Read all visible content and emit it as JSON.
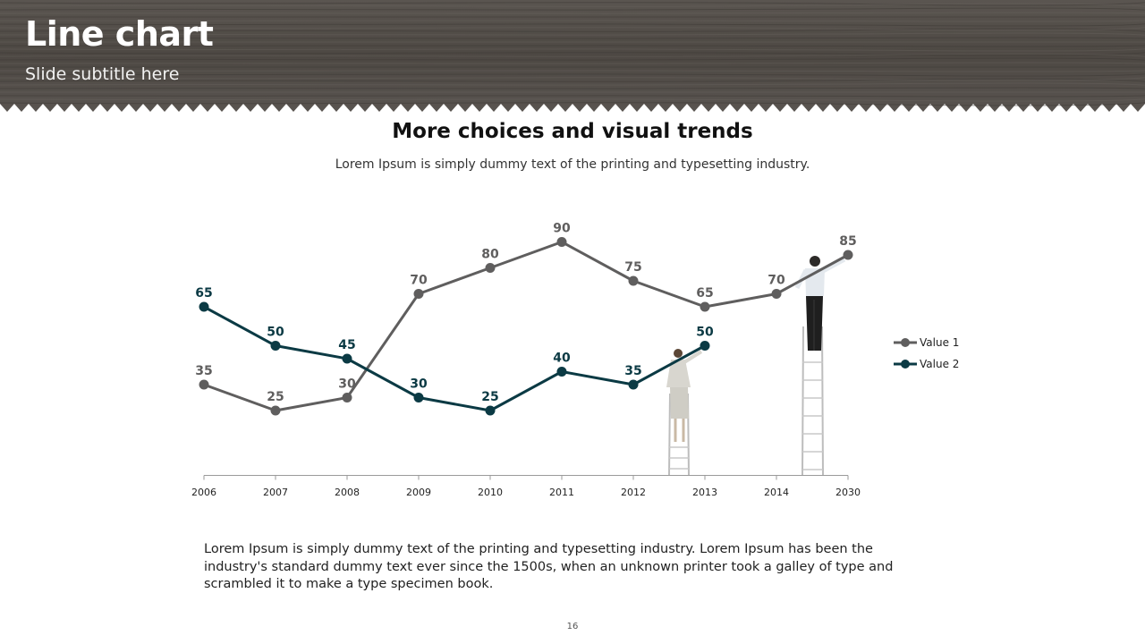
{
  "slide": {
    "title": "Line chart",
    "subtitle": "Slide subtitle here",
    "page_number": "16",
    "body_text": "Lorem Ipsum is simply dummy text of the printing and typesetting industry. Lorem Ipsum has been the industry's standard dummy text ever since the 1500s, when an unknown printer took a galley of type and scrambled it to make a type specimen book."
  },
  "colors": {
    "header_wood": "#55504b",
    "value1": "#5f5e5e",
    "value2": "#0b3a44",
    "axis": "#9a9a9a"
  },
  "chart_data": {
    "type": "line",
    "title": "More choices and visual trends",
    "subtitle": "Lorem Ipsum is simply dummy text of the printing and typesetting industry.",
    "categories": [
      "2006",
      "2007",
      "2008",
      "2009",
      "2010",
      "2011",
      "2012",
      "2013",
      "2014",
      "2030"
    ],
    "series": [
      {
        "name": "Value 1",
        "values": [
          35,
          25,
          30,
          70,
          80,
          90,
          75,
          65,
          70,
          85
        ]
      },
      {
        "name": "Value 2",
        "values": [
          65,
          50,
          45,
          30,
          25,
          40,
          35,
          50,
          null,
          null
        ]
      }
    ],
    "ylim": [
      0,
      100
    ],
    "grid": false,
    "legend": "right"
  }
}
